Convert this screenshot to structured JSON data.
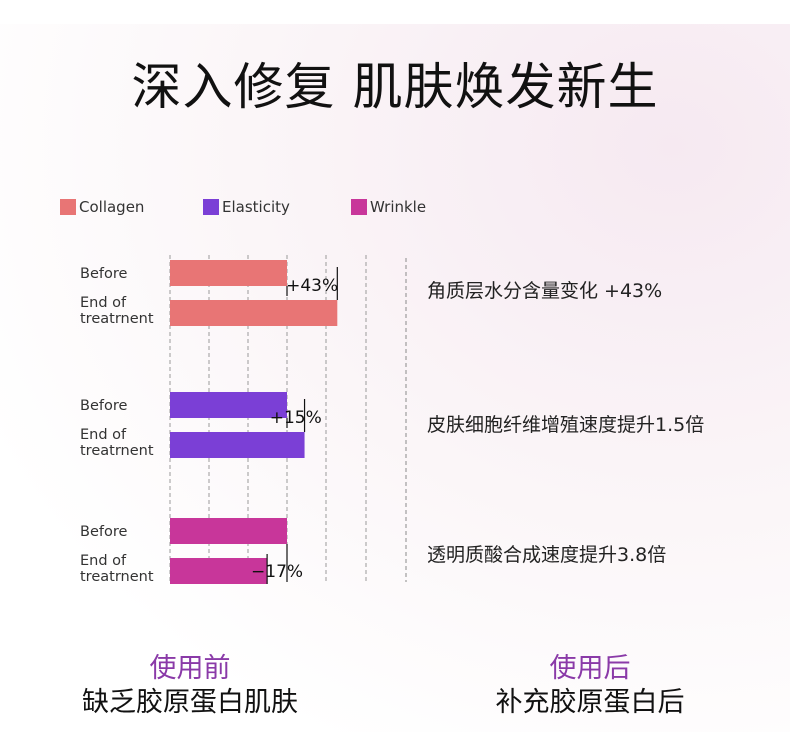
{
  "title": "深入修复  肌肤焕发新生",
  "legend": [
    {
      "label": "Collagen",
      "color": "#e87575"
    },
    {
      "label": "Elasticity",
      "color": "#7b3fd6"
    },
    {
      "label": "Wrinkle",
      "color": "#c8369a"
    }
  ],
  "chart_data": {
    "type": "bar",
    "orientation": "horizontal",
    "series_labels": [
      "Before",
      "End of\ntreatrnent"
    ],
    "grid": "vertical dashed",
    "groups": [
      {
        "name": "Collagen",
        "color": "#e87575",
        "before": 100,
        "after": 143,
        "change_label": "+43%",
        "annotation": "角质层水分含量变化  +43%"
      },
      {
        "name": "Elasticity",
        "color": "#7b3fd6",
        "before": 100,
        "after": 115,
        "change_label": "+15%",
        "annotation": "皮肤细胞纤维增殖速度提升1.5倍"
      },
      {
        "name": "Wrinkle",
        "color": "#c8369a",
        "before": 100,
        "after": 83,
        "change_label": "−17%",
        "annotation": "透明质酸合成速度提升3.8倍"
      }
    ]
  },
  "bottom": {
    "before_heading": "使用前",
    "before_sub": "缺乏胶原蛋白肌肤",
    "after_heading": "使用后",
    "after_sub": "补充胶原蛋白后"
  }
}
